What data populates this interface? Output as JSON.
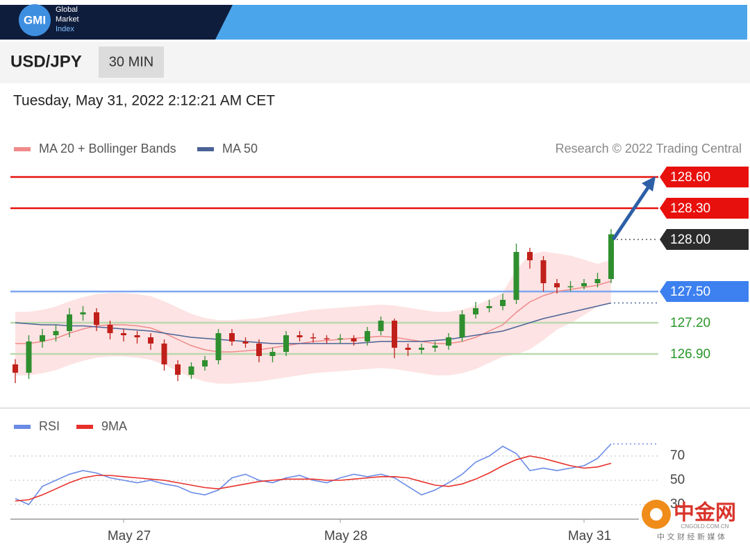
{
  "header": {
    "logo": "GMI",
    "brand": [
      "Global",
      "Market",
      "Index"
    ]
  },
  "instrument": "USD/JPY",
  "timeframe": "30 MIN",
  "timestamp": "Tuesday, May 31, 2022 2:12:21 AM CET",
  "watermark": {
    "name": "中金网",
    "url": "CNGOLD.COM.CN",
    "tagline": "中 文 财 经 新 媒 体"
  },
  "chart_data": [
    {
      "type": "candlestick",
      "credit": "Research © 2022 Trading Central",
      "up_color": "#2f8f2f",
      "down_color": "#c0201a",
      "open": [
        126.8,
        126.72,
        127.02,
        127.08,
        127.12,
        127.28,
        127.3,
        127.18,
        127.1,
        127.08,
        127.06,
        127.0,
        126.8,
        126.7,
        126.78,
        126.84,
        127.1,
        127.02,
        127.0,
        126.88,
        126.92,
        127.08,
        127.06,
        127.05,
        127.04,
        127.05,
        127.02,
        127.12,
        127.22,
        126.96,
        126.94,
        126.96,
        126.98,
        127.06,
        127.28,
        127.34,
        127.36,
        127.42,
        127.88,
        127.8,
        127.58,
        127.54,
        127.55,
        127.58,
        127.62
      ],
      "high": [
        126.85,
        127.08,
        127.14,
        127.18,
        127.34,
        127.36,
        127.34,
        127.22,
        127.14,
        127.12,
        127.1,
        127.04,
        126.84,
        126.82,
        126.88,
        127.14,
        127.14,
        127.06,
        127.04,
        126.96,
        127.12,
        127.12,
        127.1,
        127.08,
        127.09,
        127.08,
        127.16,
        127.26,
        127.24,
        127.0,
        127.0,
        127.02,
        127.1,
        127.32,
        127.4,
        127.42,
        127.48,
        127.96,
        127.92,
        127.84,
        127.62,
        127.6,
        127.62,
        127.68,
        128.1
      ],
      "low": [
        126.62,
        126.66,
        126.96,
        127.02,
        127.06,
        127.22,
        127.12,
        127.04,
        127.02,
        127.0,
        126.94,
        126.74,
        126.64,
        126.66,
        126.74,
        126.8,
        126.98,
        126.96,
        126.82,
        126.82,
        126.88,
        127.02,
        127.01,
        127.0,
        127.0,
        126.98,
        126.98,
        127.08,
        126.86,
        126.88,
        126.9,
        126.92,
        126.94,
        127.02,
        127.24,
        127.3,
        127.32,
        127.38,
        127.72,
        127.5,
        127.48,
        127.5,
        127.52,
        127.54,
        127.58
      ],
      "close": [
        126.72,
        127.02,
        127.08,
        127.12,
        127.28,
        127.3,
        127.18,
        127.1,
        127.08,
        127.06,
        127.0,
        126.8,
        126.7,
        126.78,
        126.84,
        127.1,
        127.02,
        127.0,
        126.88,
        126.92,
        127.08,
        127.06,
        127.05,
        127.04,
        127.05,
        127.02,
        127.12,
        127.22,
        126.96,
        126.94,
        126.96,
        126.98,
        127.06,
        127.28,
        127.34,
        127.36,
        127.42,
        127.88,
        127.8,
        127.58,
        127.54,
        127.55,
        127.58,
        127.62,
        128.05
      ],
      "series": [
        {
          "name": "MA 20 + Bollinger Bands",
          "color": "#f08a8a",
          "band_color": "#fde3e3",
          "values": [
            127.0,
            127.0,
            127.02,
            127.05,
            127.1,
            127.14,
            127.17,
            127.18,
            127.18,
            127.17,
            127.15,
            127.1,
            127.04,
            126.98,
            126.94,
            126.92,
            126.92,
            126.93,
            126.94,
            126.96,
            126.98,
            127.0,
            127.02,
            127.03,
            127.04,
            127.05,
            127.06,
            127.07,
            127.06,
            127.04,
            127.02,
            127.0,
            127.0,
            127.02,
            127.06,
            127.12,
            127.18,
            127.3,
            127.4,
            127.46,
            127.5,
            127.52,
            127.54,
            127.56,
            127.6
          ],
          "upper": [
            127.3,
            127.3,
            127.32,
            127.35,
            127.4,
            127.44,
            127.47,
            127.48,
            127.48,
            127.47,
            127.45,
            127.4,
            127.34,
            127.28,
            127.24,
            127.22,
            127.22,
            127.23,
            127.24,
            127.26,
            127.28,
            127.3,
            127.32,
            127.33,
            127.34,
            127.35,
            127.36,
            127.37,
            127.36,
            127.34,
            127.32,
            127.3,
            127.3,
            127.32,
            127.36,
            127.42,
            127.48,
            127.7,
            127.85,
            127.88,
            127.86,
            127.84,
            127.8,
            127.76,
            127.8
          ],
          "lower": [
            126.7,
            126.7,
            126.72,
            126.75,
            126.8,
            126.84,
            126.87,
            126.88,
            126.88,
            126.87,
            126.85,
            126.8,
            126.74,
            126.68,
            126.64,
            126.62,
            126.62,
            126.63,
            126.64,
            126.66,
            126.68,
            126.7,
            126.72,
            126.73,
            126.74,
            126.75,
            126.76,
            126.77,
            126.76,
            126.74,
            126.72,
            126.7,
            126.7,
            126.72,
            126.76,
            126.82,
            126.88,
            126.9,
            126.95,
            127.04,
            127.14,
            127.2,
            127.28,
            127.36,
            127.4
          ]
        },
        {
          "name": "MA 50",
          "color": "#4a6296",
          "values": [
            127.2,
            127.19,
            127.18,
            127.18,
            127.17,
            127.17,
            127.16,
            127.15,
            127.14,
            127.13,
            127.12,
            127.1,
            127.08,
            127.06,
            127.05,
            127.04,
            127.03,
            127.02,
            127.01,
            127.0,
            127.0,
            127.0,
            127.0,
            127.0,
            127.0,
            127.0,
            127.01,
            127.02,
            127.02,
            127.02,
            127.02,
            127.03,
            127.04,
            127.06,
            127.08,
            127.1,
            127.12,
            127.16,
            127.2,
            127.24,
            127.27,
            127.3,
            127.33,
            127.36,
            127.39
          ]
        }
      ],
      "ylim": [
        126.4,
        128.73
      ],
      "levels": [
        {
          "value": 128.6,
          "label": "128.60",
          "style": "box",
          "line": "solid",
          "color": "#e8100c",
          "line_color": "#e8100c"
        },
        {
          "value": 128.3,
          "label": "128.30",
          "style": "box",
          "line": "solid",
          "color": "#e8100c",
          "line_color": "#e8100c"
        },
        {
          "value": 128.0,
          "label": "128.00",
          "style": "box",
          "line": "dotted",
          "color": "#2b2b2b",
          "line_color": "#555555"
        },
        {
          "value": 127.5,
          "label": "127.50",
          "style": "box",
          "line": "solid",
          "color": "#3d80ef",
          "line_color": "#7fa6f2"
        },
        {
          "value": 127.2,
          "label": "127.20",
          "style": "text",
          "line": "solid",
          "color": "#2a962a",
          "line_color": "#b9d9ad"
        },
        {
          "value": 126.9,
          "label": "126.90",
          "style": "text",
          "line": "solid",
          "color": "#2a962a",
          "line_color": "#b9d9ad"
        }
      ]
    },
    {
      "type": "line",
      "categories": [
        null,
        null,
        null,
        null,
        null,
        null,
        null,
        null,
        "May 27",
        null,
        null,
        null,
        null,
        null,
        null,
        null,
        null,
        null,
        null,
        null,
        null,
        null,
        null,
        null,
        "May 28",
        null,
        null,
        null,
        null,
        null,
        null,
        null,
        null,
        null,
        null,
        null,
        null,
        null,
        null,
        null,
        null,
        null,
        "May 31",
        null,
        null
      ],
      "series": [
        {
          "name": "RSI",
          "color": "#6a8be6",
          "values": [
            35,
            30,
            45,
            50,
            55,
            58,
            56,
            52,
            50,
            48,
            50,
            47,
            45,
            40,
            38,
            42,
            52,
            55,
            50,
            48,
            52,
            54,
            50,
            48,
            52,
            55,
            53,
            55,
            52,
            45,
            38,
            42,
            48,
            55,
            65,
            70,
            78,
            72,
            58,
            60,
            58,
            60,
            62,
            68,
            80
          ]
        },
        {
          "name": "9MA",
          "color": "#e8302a",
          "values": [
            33,
            34,
            38,
            43,
            48,
            52,
            54,
            54,
            53,
            52,
            51,
            50,
            48,
            46,
            44,
            43,
            45,
            47,
            49,
            50,
            51,
            51,
            51,
            50,
            50,
            51,
            52,
            53,
            53,
            52,
            49,
            46,
            45,
            47,
            51,
            56,
            62,
            67,
            70,
            68,
            65,
            62,
            60,
            61,
            64
          ]
        }
      ],
      "ylim": [
        18,
        86
      ],
      "yticks": [
        30,
        50,
        70
      ],
      "grid": true
    }
  ]
}
